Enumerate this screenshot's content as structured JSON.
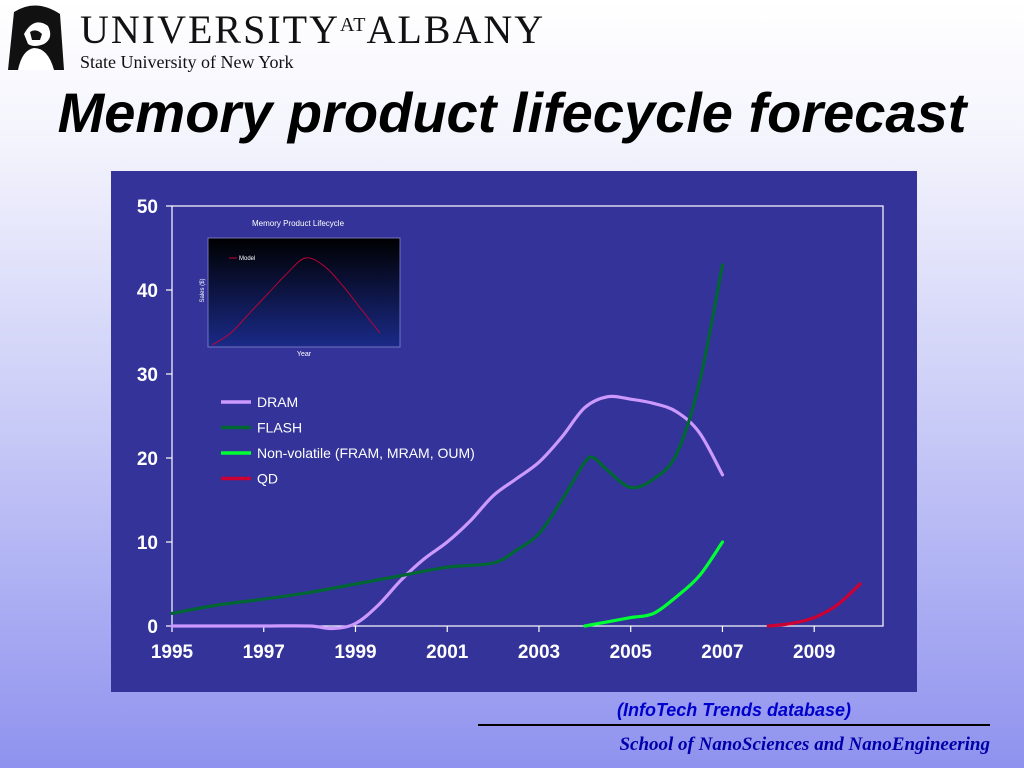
{
  "header": {
    "logo_name_1": "UNIVERSITY",
    "logo_at": "AT",
    "logo_name_2": "ALBANY",
    "logo_subtitle": "State University of New York"
  },
  "slide": {
    "title": "Memory product lifecycle forecast",
    "source": "(InfoTech  Trends database)",
    "footer": "School of NanoSciences and NanoEngineering"
  },
  "colors": {
    "plot_background": "#333399",
    "axis": "#ffffff",
    "dram": "#cc99ff",
    "flash": "#006633",
    "nonvolatile": "#00ff33",
    "qd": "#cc0033"
  },
  "chart_data": [
    {
      "type": "line",
      "title": "",
      "xlabel": "",
      "ylabel": "",
      "xlim": [
        1995,
        2010.5
      ],
      "ylim": [
        0,
        50
      ],
      "x_ticks": [
        "1995",
        "1997",
        "1999",
        "2001",
        "2003",
        "2005",
        "2007",
        "2009"
      ],
      "y_ticks": [
        "0",
        "10",
        "20",
        "30",
        "40",
        "50"
      ],
      "grid": false,
      "legend": "upper-left",
      "series": [
        {
          "name": "DRAM",
          "color": "#cc99ff",
          "x": [
            1995,
            1996,
            1997,
            1998,
            1998.5,
            1999,
            1999.5,
            2000,
            2000.5,
            2001,
            2001.5,
            2002,
            2002.5,
            2003,
            2003.5,
            2004,
            2004.5,
            2005,
            2005.5,
            2006,
            2006.5,
            2007
          ],
          "y": [
            0,
            0,
            0,
            0,
            -0.3,
            0.3,
            2.5,
            5.5,
            8,
            10,
            12.5,
            15.5,
            17.5,
            19.5,
            22.5,
            26,
            27.3,
            27,
            26.5,
            25.5,
            23,
            18
          ]
        },
        {
          "name": "FLASH",
          "color": "#006633",
          "x": [
            1995,
            1996,
            1997,
            1998,
            1999,
            2000,
            2001,
            2002,
            2002.5,
            2003,
            2003.5,
            2004,
            2004.2,
            2004.5,
            2005,
            2005.5,
            2006,
            2006.5,
            2007
          ],
          "y": [
            1.5,
            2.5,
            3.2,
            4,
            5,
            6,
            7,
            7.5,
            9,
            11,
            15,
            19.5,
            20,
            18.5,
            16.5,
            17.5,
            20.5,
            29,
            43
          ]
        },
        {
          "name": "Non-volatile (FRAM, MRAM, OUM)",
          "color": "#00ff33",
          "x": [
            2004,
            2004.5,
            2005,
            2005.5,
            2006,
            2006.5,
            2007
          ],
          "y": [
            0,
            0.5,
            1,
            1.5,
            3.5,
            6,
            10
          ]
        },
        {
          "name": "QD",
          "color": "#cc0033",
          "x": [
            2008,
            2008.5,
            2009,
            2009.5,
            2010
          ],
          "y": [
            0,
            0.3,
            1,
            2.5,
            5
          ]
        }
      ]
    },
    {
      "type": "line",
      "title": "Memory Product Lifecycle",
      "xlabel": "Year",
      "ylabel": "Sales ($)",
      "grid": false,
      "legend": "top-left",
      "series": [
        {
          "name": "Model",
          "color": "#cc0033",
          "x": [
            0,
            1,
            2,
            3,
            4,
            5,
            6,
            7,
            8,
            9
          ],
          "y": [
            0,
            15,
            40,
            65,
            90,
            110,
            100,
            75,
            45,
            15
          ]
        }
      ]
    }
  ]
}
